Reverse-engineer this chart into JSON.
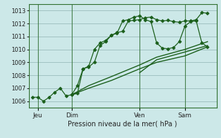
{
  "xlabel": "Pression niveau de la mer( hPa )",
  "ylim": [
    1005.5,
    1013.5
  ],
  "yticks": [
    1006,
    1007,
    1008,
    1009,
    1010,
    1011,
    1012,
    1013
  ],
  "xlim": [
    -0.3,
    16.3
  ],
  "bg_color": "#cce8e8",
  "grid_color": "#99bbbb",
  "line_color": "#1a5e1a",
  "day_labels": [
    "Jeu",
    "Dim",
    "Ven",
    "Sam"
  ],
  "day_positions": [
    0.5,
    3.5,
    9.5,
    13.5
  ],
  "vline_positions": [
    0.5,
    3.5,
    9.5,
    13.5
  ],
  "lines": [
    {
      "x": [
        0.0,
        0.5,
        1.0,
        1.5,
        2.0,
        2.5,
        3.0,
        3.5,
        4.0,
        4.5,
        5.0,
        5.5,
        6.0,
        6.5,
        7.0,
        7.5,
        8.0,
        8.5,
        9.0,
        9.5,
        10.0,
        10.5,
        11.0,
        11.5,
        12.0,
        12.5,
        13.0,
        13.5,
        14.0,
        14.5,
        15.0,
        15.5
      ],
      "y": [
        1006.3,
        1006.3,
        1006.0,
        1006.3,
        1006.7,
        1007.0,
        1006.4,
        1006.5,
        1007.2,
        1008.5,
        1008.7,
        1010.0,
        1010.5,
        1010.7,
        1011.1,
        1011.3,
        1011.4,
        1012.2,
        1012.25,
        1012.3,
        1012.45,
        1012.5,
        1012.3,
        1012.2,
        1012.25,
        1012.15,
        1012.1,
        1012.2,
        1012.2,
        1012.3,
        1012.85,
        1012.8
      ],
      "marker": "D",
      "markersize": 2.5,
      "linewidth": 0.9,
      "linestyle": "-"
    },
    {
      "x": [
        3.5,
        4.0,
        4.5,
        5.0,
        5.5,
        6.0,
        6.5,
        7.0,
        7.5,
        8.0,
        8.5,
        9.0,
        9.5,
        10.0,
        10.5,
        11.0,
        11.5,
        12.0,
        12.5,
        13.0,
        13.5,
        14.0,
        14.5,
        15.0,
        15.5
      ],
      "y": [
        1006.5,
        1006.6,
        1008.5,
        1008.65,
        1009.0,
        1010.3,
        1010.6,
        1011.1,
        1011.25,
        1012.2,
        1012.3,
        1012.5,
        1012.6,
        1012.3,
        1012.15,
        1010.5,
        1010.1,
        1010.05,
        1010.15,
        1010.6,
        1011.8,
        1012.15,
        1012.2,
        1010.5,
        1010.2
      ],
      "marker": "D",
      "markersize": 2.5,
      "linewidth": 0.9,
      "linestyle": "-"
    },
    {
      "x": [
        3.5,
        5.0,
        7.0,
        9.5,
        11.0,
        13.5,
        15.5
      ],
      "y": [
        1006.5,
        1007.0,
        1007.6,
        1008.5,
        1009.0,
        1009.5,
        1010.2
      ],
      "marker": null,
      "markersize": 0,
      "linewidth": 1.0,
      "linestyle": "-"
    },
    {
      "x": [
        3.5,
        5.0,
        7.0,
        9.5,
        11.0,
        13.5,
        15.5
      ],
      "y": [
        1006.5,
        1007.2,
        1007.9,
        1008.8,
        1009.4,
        1010.0,
        1010.6
      ],
      "marker": null,
      "markersize": 0,
      "linewidth": 1.0,
      "linestyle": "-"
    },
    {
      "x": [
        9.5,
        11.0,
        13.5,
        15.5
      ],
      "y": [
        1008.2,
        1009.2,
        1009.8,
        1010.3
      ],
      "marker": null,
      "markersize": 0,
      "linewidth": 1.0,
      "linestyle": "-"
    }
  ]
}
